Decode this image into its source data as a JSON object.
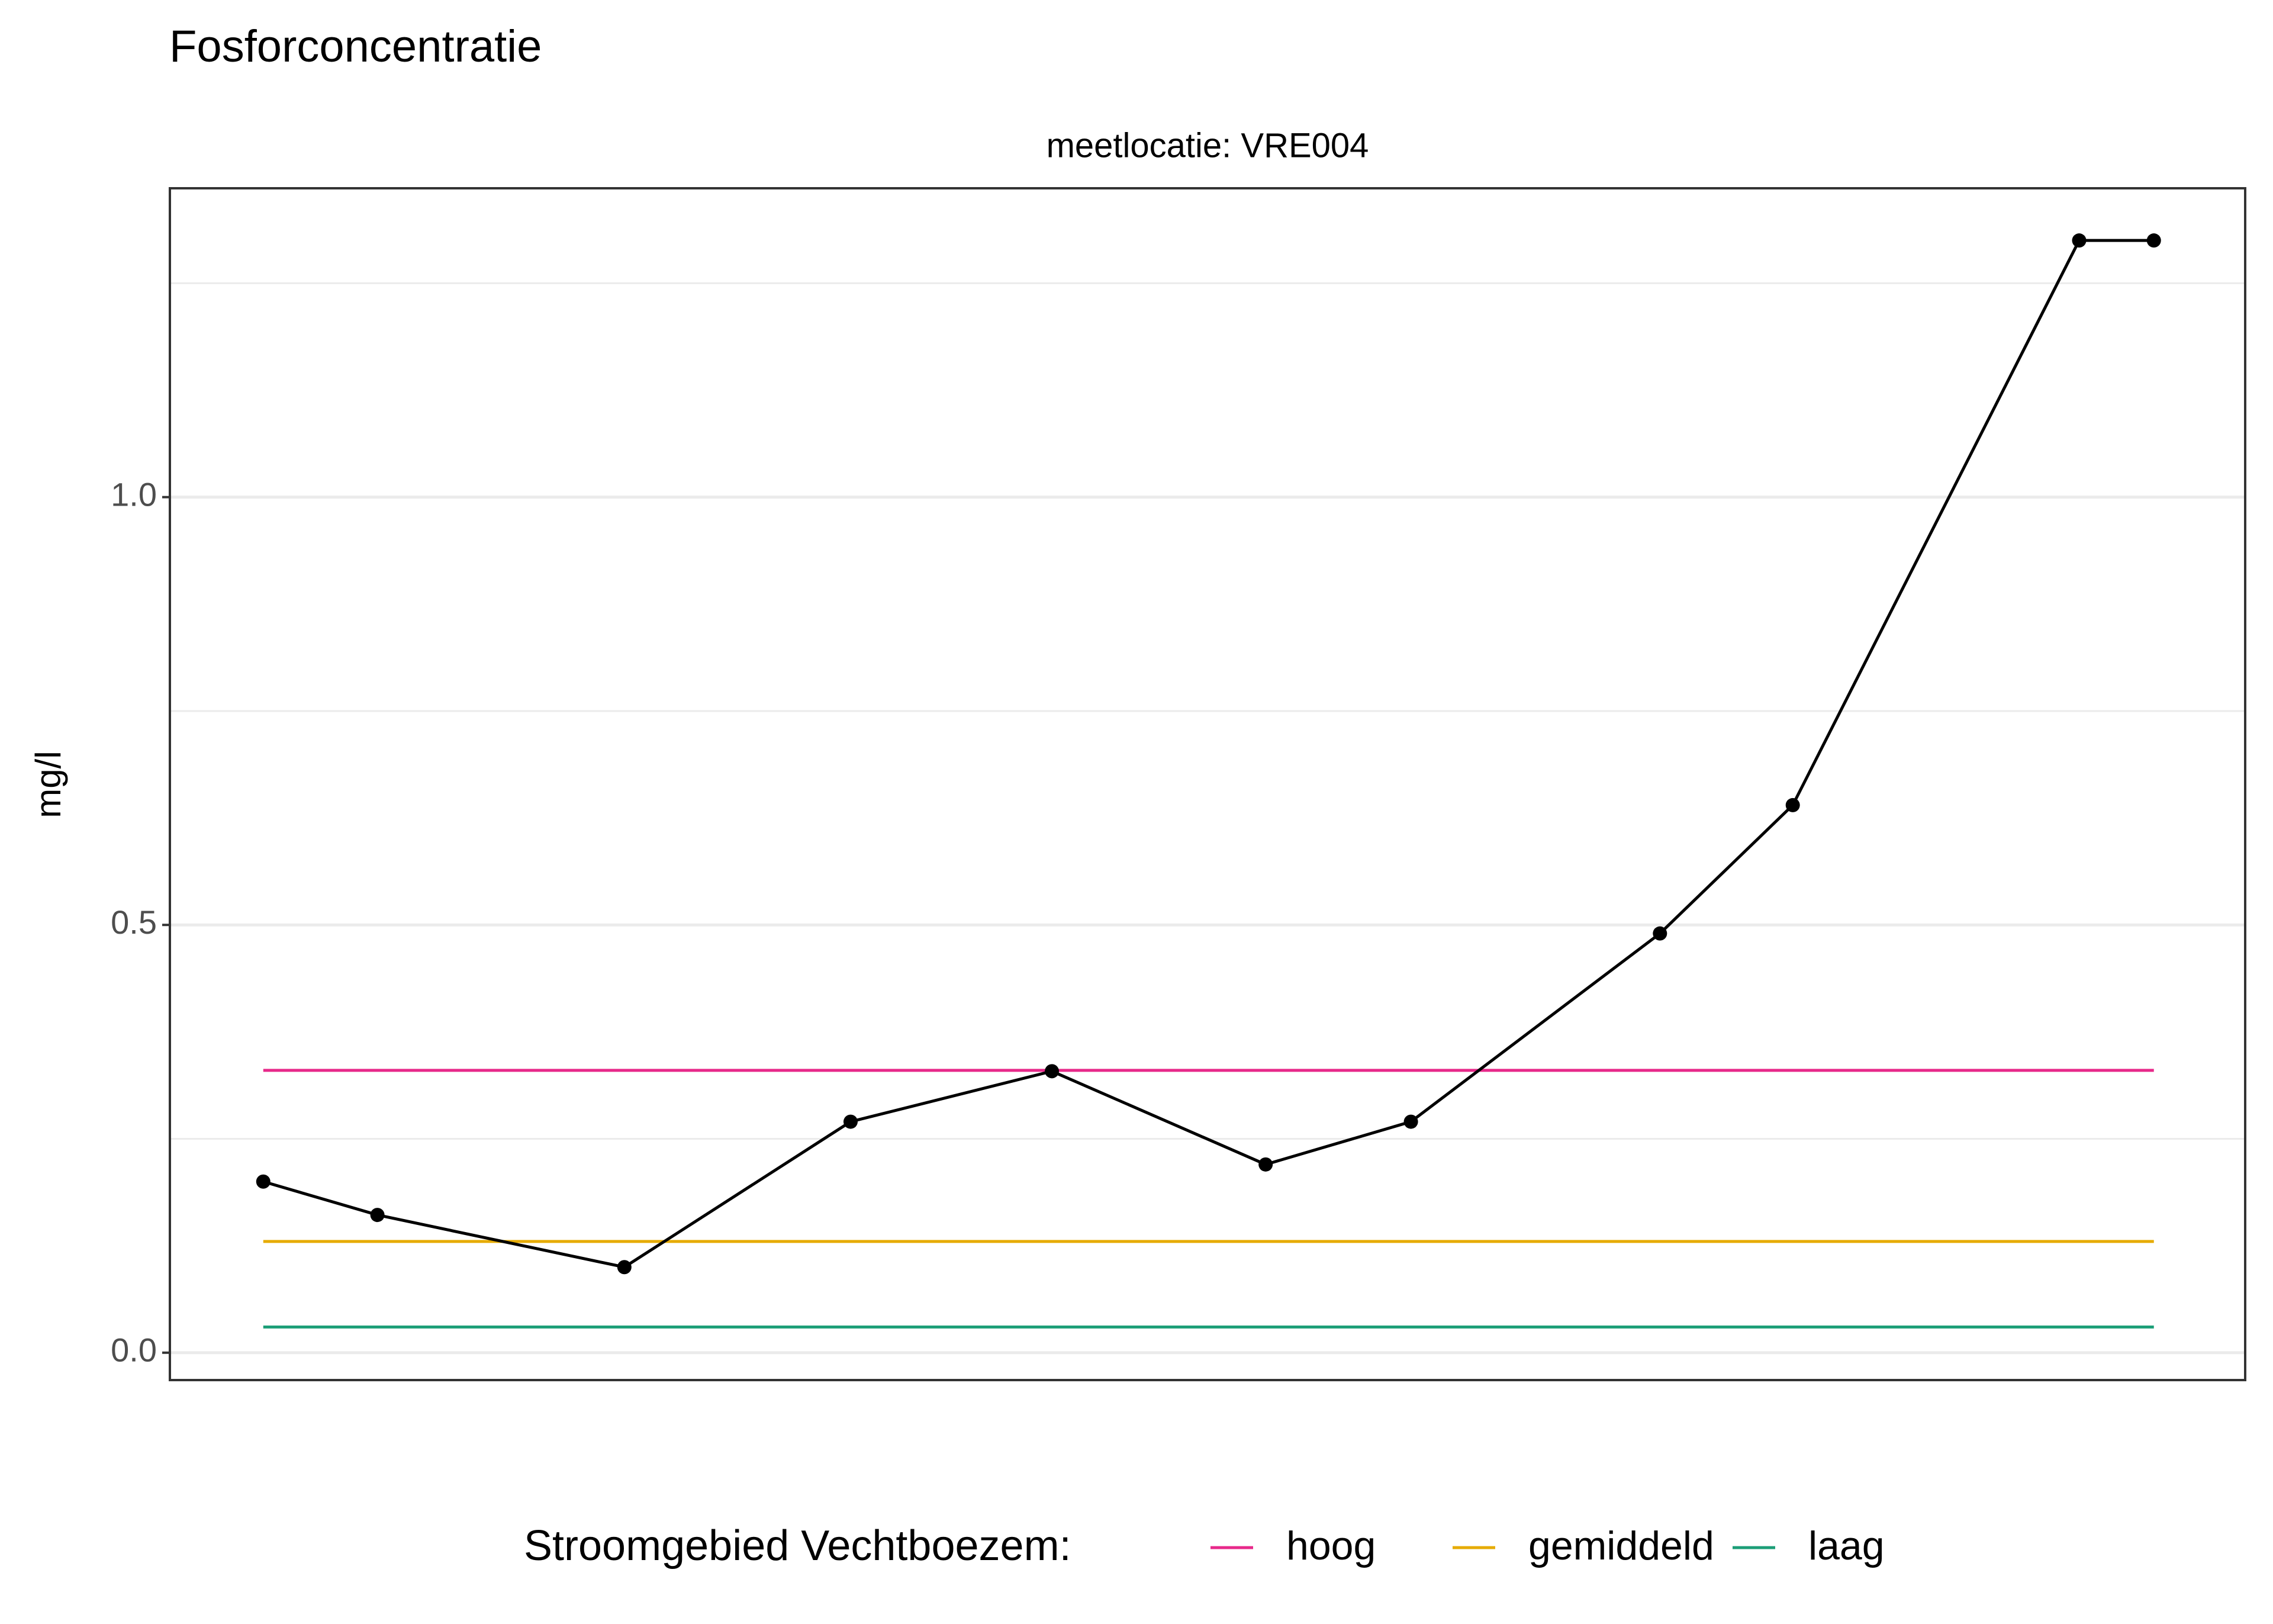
{
  "chart_data": {
    "type": "line",
    "title": "Fosforconcentratie",
    "subtitle": "meetlocatie: VRE004",
    "y_label": "mg/l",
    "x": [
      4.5,
      10.0,
      21.9,
      32.8,
      42.5,
      52.8,
      59.8,
      71.8,
      78.2,
      92.0,
      95.6
    ],
    "xlim": [
      0,
      100
    ],
    "series": [
      {
        "color": "#000000",
        "values": [
          0.2,
          0.161,
          0.1,
          0.27,
          0.329,
          0.22,
          0.27,
          0.49,
          0.64,
          1.3,
          1.3
        ]
      }
    ],
    "reference_lines": [
      {
        "name": "hoog",
        "color": "#e7298a",
        "value": 0.33
      },
      {
        "name": "gemiddeld",
        "color": "#e6ab02",
        "value": 0.13
      },
      {
        "name": "laag",
        "color": "#1b9e77",
        "value": 0.03
      }
    ],
    "legend_title": "Stroomgebied Vechtboezem:",
    "legend_position": "bottom",
    "ylim": [
      -0.032,
      1.361
    ],
    "yticks": [
      {
        "value": 0,
        "label": "0.0"
      },
      0.5,
      {
        "value": 1,
        "label": "1.0"
      }
    ],
    "minor_yticks": [
      0.25,
      0.75,
      1.25
    ],
    "grid": true
  }
}
